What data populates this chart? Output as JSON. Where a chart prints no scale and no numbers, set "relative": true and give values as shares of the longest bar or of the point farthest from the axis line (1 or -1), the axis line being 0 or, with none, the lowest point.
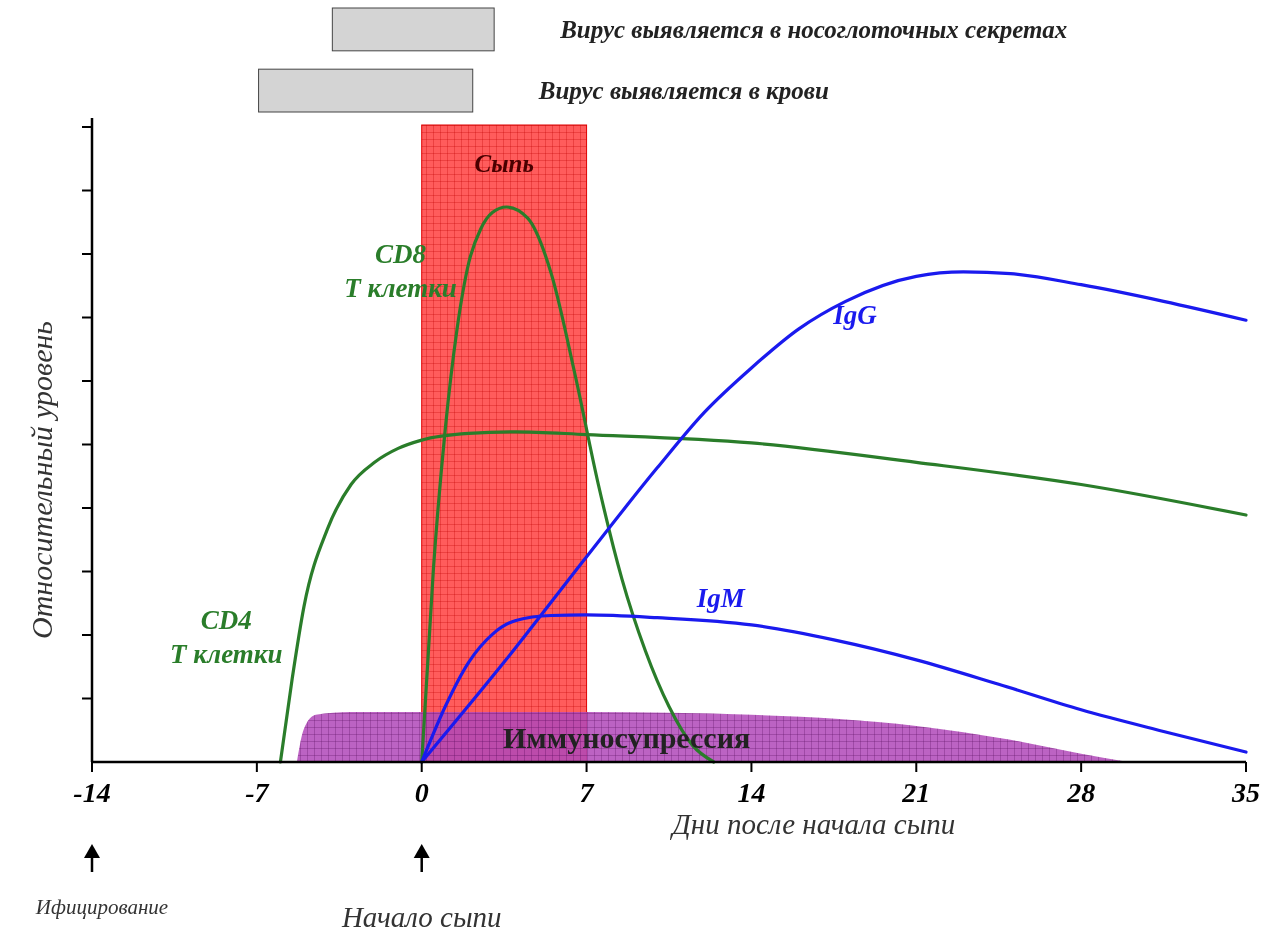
{
  "chart_data": [
    {
      "type": "bar",
      "orientation": "horizontal",
      "categories": [
        "Вирус выявляется в носоглоточных секретах",
        "Вирус выявляется в крови"
      ],
      "base": [
        -3.9,
        -7
      ],
      "values": [
        6.8,
        9
      ],
      "color": "#d4d4d4",
      "xlim": [
        -14,
        35
      ]
    },
    {
      "type": "line",
      "relative": true,
      "xlim": [
        -14,
        35
      ],
      "xticks": [
        -14,
        -7,
        0,
        7,
        14,
        21,
        28,
        35
      ],
      "xlabel": "Дни после начала сыпи",
      "ylabel": "Относительный уровень",
      "series": [
        {
          "name": "CD4 Т клетки",
          "color": "#2a7d2a",
          "x": [
            -6,
            -5.5,
            -5,
            -4,
            -3,
            -2,
            -1,
            0,
            2,
            4,
            7,
            14,
            21,
            28,
            35
          ],
          "values": [
            0,
            0.15,
            0.28,
            0.42,
            0.5,
            0.54,
            0.565,
            0.58,
            0.592,
            0.595,
            0.59,
            0.575,
            0.54,
            0.5,
            0.445
          ]
        },
        {
          "name": "CD8 Т клетки",
          "color": "#2a7d2a",
          "x": [
            0,
            0.5,
            1,
            1.5,
            2,
            2.5,
            3,
            3.6,
            4.5,
            5.5,
            6.5,
            7.5,
            8.5,
            9.5,
            10.5,
            11.5,
            12.4
          ],
          "values": [
            0,
            0.35,
            0.6,
            0.78,
            0.9,
            0.96,
            0.99,
            1,
            0.98,
            0.88,
            0.7,
            0.5,
            0.33,
            0.2,
            0.1,
            0.03,
            0
          ]
        },
        {
          "name": "IgG",
          "color": "#1a1aee",
          "x": [
            0,
            3.5,
            7,
            10,
            12,
            14,
            16,
            18,
            21,
            23,
            25,
            28,
            31.5,
            35
          ],
          "values": [
            0,
            0.18,
            0.37,
            0.53,
            0.63,
            0.71,
            0.78,
            0.83,
            0.875,
            0.883,
            0.88,
            0.86,
            0.83,
            0.796
          ]
        },
        {
          "name": "IgM",
          "color": "#1a1aee",
          "x": [
            0,
            1,
            2,
            3,
            4,
            5.5,
            7,
            10,
            14,
            17.5,
            21,
            24.5,
            28,
            31.5,
            35
          ],
          "values": [
            0,
            0.1,
            0.18,
            0.23,
            0.255,
            0.264,
            0.265,
            0.26,
            0.247,
            0.22,
            0.184,
            0.14,
            0.094,
            0.055,
            0.018
          ]
        },
        {
          "name": "Иммуносупрессия",
          "type": "area",
          "color": "#b048b8",
          "x": [
            -5.3,
            -5,
            -4.5,
            -3,
            7,
            14,
            21,
            25,
            28,
            30
          ],
          "values": [
            0,
            0.06,
            0.085,
            0.09,
            0.09,
            0.085,
            0.065,
            0.04,
            0.015,
            0
          ]
        }
      ],
      "bands": [
        {
          "axis": "x",
          "from": 0,
          "to": 7,
          "label": "Сыпь",
          "color": "#ff4040"
        }
      ],
      "annotations": [
        "Ифицирование",
        "Начало сыпи"
      ]
    }
  ]
}
